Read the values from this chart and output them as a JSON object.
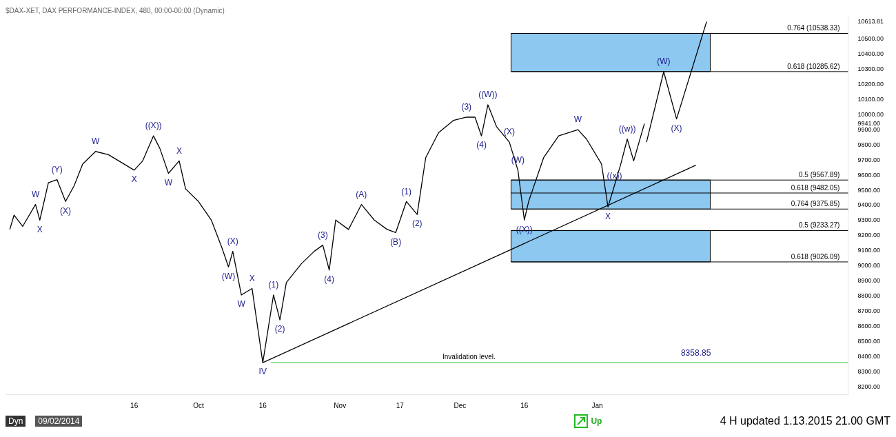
{
  "chart_data": {
    "type": "line",
    "title": "$DAX-XET, DAX PERFORMANCE-INDEX, 480, 00:00-00:00 (Dynamic)",
    "x": [
      "2014-08-18",
      "2014-08-19",
      "2014-08-21",
      "2014-08-24",
      "2014-08-25",
      "2014-08-27",
      "2014-08-29",
      "2014-08-31",
      "2014-09-02",
      "2014-09-04",
      "2014-09-07",
      "2014-09-10",
      "2014-09-16",
      "2014-09-18",
      "2014-09-20T12:00",
      "2014-09-22",
      "2014-09-24",
      "2014-09-26T12:00",
      "2014-09-28",
      "2014-10-01",
      "2014-10-04",
      "2014-10-06T12:00",
      "2014-10-08",
      "2014-10-09",
      "2014-10-11",
      "2014-10-13T12:00",
      "2014-10-16",
      "2014-10-18T12:00",
      "2014-10-20",
      "2014-10-21T12:00",
      "2014-10-25",
      "2014-10-28",
      "2014-10-30",
      "2014-10-31T12:00",
      "2014-11-02",
      "2014-11-05",
      "2014-11-08",
      "2014-11-11",
      "2014-11-14",
      "2014-11-16",
      "2014-11-18T12:00",
      "2014-11-21",
      "2014-11-23",
      "2014-11-26",
      "2014-11-29T12:00",
      "2014-12-02T12:00",
      "2014-12-04T12:00",
      "2014-12-06",
      "2014-12-07T12:00",
      "2014-12-09T12:00",
      "2014-12-12T12:00",
      "2014-12-14T12:00",
      "2014-12-16",
      "2014-12-17",
      "2014-12-18",
      "2014-12-20T12:00",
      "2014-12-24",
      "2014-12-28T12:00",
      "2014-12-30T12:00",
      "2015-01-03",
      "2015-01-04T12:00",
      "2015-01-06",
      "2015-01-07T12:00",
      "2015-01-09",
      "2015-01-10T12:00",
      "2015-01-13"
    ],
    "series": [
      {
        "color": "#000000",
        "values": [
          9241,
          9336,
          9261,
          9406,
          9303,
          9550,
          9571,
          9426,
          9530,
          9674,
          9757,
          9736,
          9633,
          9695,
          9860,
          9777,
          9612,
          9695,
          9509,
          9426,
          9303,
          9117,
          8993,
          9096,
          8807,
          8850,
          8359,
          8807,
          8642,
          8890,
          9014,
          9096,
          9137,
          8972,
          9303,
          9241,
          9406,
          9303,
          9241,
          9220,
          9426,
          9340,
          9716,
          9881,
          9963,
          9984,
          9984,
          9860,
          10066,
          9922,
          9819,
          9633,
          9303,
          9426,
          9509,
          9716,
          9860,
          9901,
          9839,
          9674,
          9390,
          9530,
          9674,
          9839,
          9695,
          9941
        ]
      },
      {
        "type": "line",
        "color": "#000000",
        "x": [
          "2015-01-13T12:00",
          "2015-01-17T12:00",
          "2015-01-20T12:00",
          "2015-01-27T12:00"
        ],
        "values": [
          9819,
          10285,
          9972,
          10616
        ]
      },
      {
        "type": "line",
        "color": "#000000",
        "x": [
          "2014-10-16",
          "2015-01-25"
        ],
        "values": [
          8359,
          9666
        ]
      }
    ],
    "xlim": [
      "2014-08-17",
      "2015-03-01T12:00"
    ],
    "xticks": [
      {
        "value": "2014-09-16",
        "label": "16"
      },
      {
        "value": "2014-10-01",
        "label": "Oct"
      },
      {
        "value": "2014-10-16",
        "label": "16"
      },
      {
        "value": "2014-11-03",
        "label": "Nov"
      },
      {
        "value": "2014-11-17",
        "label": "17"
      },
      {
        "value": "2014-12-01",
        "label": "Dec"
      },
      {
        "value": "2014-12-16",
        "label": "16"
      },
      {
        "value": "2015-01-02",
        "label": "Jan"
      }
    ],
    "ylim": [
      8150,
      10650
    ],
    "yticks": [
      {
        "value": 8200,
        "label": "8200.00"
      },
      {
        "value": 8300,
        "label": "8300.00"
      },
      {
        "value": 8400,
        "label": "8400.00"
      },
      {
        "value": 8500,
        "label": "8500.00"
      },
      {
        "value": 8600,
        "label": "8600.00"
      },
      {
        "value": 8700,
        "label": "8700.00"
      },
      {
        "value": 8800,
        "label": "8800.00"
      },
      {
        "value": 8900,
        "label": "8900.00"
      },
      {
        "value": 9000,
        "label": "9000.00"
      },
      {
        "value": 9100,
        "label": "9100.00"
      },
      {
        "value": 9200,
        "label": "9200.00"
      },
      {
        "value": 9300,
        "label": "9300.00"
      },
      {
        "value": 9400,
        "label": "9400.00"
      },
      {
        "value": 9500,
        "label": "9500.00"
      },
      {
        "value": 9600,
        "label": "9600.00"
      },
      {
        "value": 9700,
        "label": "9700.00"
      },
      {
        "value": 9800,
        "label": "9800.00"
      },
      {
        "value": 9900,
        "label": "9900.00"
      },
      {
        "value": 9941,
        "label": "9941.00"
      },
      {
        "value": 10000,
        "label": "10000.00"
      },
      {
        "value": 10100,
        "label": "10100.00"
      },
      {
        "value": 10200,
        "label": "10200.00"
      },
      {
        "value": 10300,
        "label": "10300.00"
      },
      {
        "value": 10400,
        "label": "10400.00"
      },
      {
        "value": 10500,
        "label": "10500.00"
      },
      {
        "value": 10613.81,
        "label": "10613.81"
      }
    ],
    "grid": false,
    "legend": false,
    "marker": "none",
    "ref_lines": [
      {
        "axis": "y",
        "value": 10538.33,
        "label": "0.764 (10538.33)",
        "color": "#000000"
      },
      {
        "axis": "y",
        "value": 10285.62,
        "label": "0.618 (10285.62)",
        "color": "#000000"
      },
      {
        "axis": "y",
        "value": 9567.89,
        "label": "0.5 (9567.89)",
        "color": "#000000"
      },
      {
        "axis": "y",
        "value": 9482.05,
        "label": "0.618 (9482.05)",
        "color": "#000000"
      },
      {
        "axis": "y",
        "value": 9375.85,
        "label": "0.764 (9375.85)",
        "color": "#000000"
      },
      {
        "axis": "y",
        "value": 9233.27,
        "label": "0.5 (9233.27)",
        "color": "#000000"
      },
      {
        "axis": "y",
        "value": 9026.09,
        "label": "0.618 (9026.09)",
        "color": "#000000"
      },
      {
        "axis": "y",
        "value": 8358.85,
        "label": "Invalidation level.",
        "color": "#22bb22"
      }
    ],
    "bands": [
      {
        "axis": "y",
        "from": 10285.62,
        "to": 10538.33,
        "color": "#8cc8f0"
      },
      {
        "axis": "y",
        "from": 9375.85,
        "to": 9567.89,
        "color": "#8cc8f0"
      },
      {
        "axis": "y",
        "from": 9026.09,
        "to": 9233.27,
        "color": "#8cc8f0"
      }
    ],
    "annotations": [
      {
        "text": "((X))",
        "x": "2014-09-20T12:00",
        "y": 9860
      },
      {
        "text": "W",
        "x": "2014-09-07",
        "y": 9757
      },
      {
        "text": "(Y)",
        "x": "2014-08-29",
        "y": 9571
      },
      {
        "text": "W",
        "x": "2014-08-24",
        "y": 9406
      },
      {
        "text": "X",
        "x": "2014-08-25",
        "y": 9303
      },
      {
        "text": "(X)",
        "x": "2014-08-31",
        "y": 9426
      },
      {
        "text": "X",
        "x": "2014-09-16",
        "y": 9633
      },
      {
        "text": "X",
        "x": "2014-09-26T12:00",
        "y": 9695
      },
      {
        "text": "W",
        "x": "2014-09-24",
        "y": 9612
      },
      {
        "text": "(X)",
        "x": "2014-10-09",
        "y": 9096
      },
      {
        "text": "(W)",
        "x": "2014-10-08",
        "y": 8993
      },
      {
        "text": "X",
        "x": "2014-10-13T12:00",
        "y": 8850
      },
      {
        "text": "W",
        "x": "2014-10-11",
        "y": 8807
      },
      {
        "text": "(1)",
        "x": "2014-10-18T12:00",
        "y": 8807
      },
      {
        "text": "(2)",
        "x": "2014-10-20",
        "y": 8642
      },
      {
        "text": "(3)",
        "x": "2014-10-30",
        "y": 9137
      },
      {
        "text": "(4)",
        "x": "2014-10-31T12:00",
        "y": 8972
      },
      {
        "text": "IV",
        "x": "2014-10-16",
        "y": 8359
      },
      {
        "text": "(A)",
        "x": "2014-11-08",
        "y": 9406
      },
      {
        "text": "(B)",
        "x": "2014-11-16",
        "y": 9220
      },
      {
        "text": "(1)",
        "x": "2014-11-18T12:00",
        "y": 9426
      },
      {
        "text": "(2)",
        "x": "2014-11-21",
        "y": 9340
      },
      {
        "text": "(3)",
        "x": "2014-12-02T12:00",
        "y": 9984
      },
      {
        "text": "((W))",
        "x": "2014-12-07T12:00",
        "y": 10066
      },
      {
        "text": "(4)",
        "x": "2014-12-06",
        "y": 9860
      },
      {
        "text": "(X)",
        "x": "2014-12-12T12:00",
        "y": 9819
      },
      {
        "text": "(W)",
        "x": "2014-12-14T12:00",
        "y": 9633
      },
      {
        "text": "((X))",
        "x": "2014-12-16",
        "y": 9303
      },
      {
        "text": "W",
        "x": "2014-12-28T12:00",
        "y": 9901
      },
      {
        "text": "((w))",
        "x": "2015-01-09",
        "y": 9839
      },
      {
        "text": "((x))",
        "x": "2015-01-06",
        "y": 9530
      },
      {
        "text": "X",
        "x": "2015-01-04T12:00",
        "y": 9390
      },
      {
        "text": "(W)",
        "x": "2015-01-17T12:00",
        "y": 10285
      },
      {
        "text": "(X)",
        "x": "2015-01-20T12:00",
        "y": 9972
      },
      {
        "text": "8358.85",
        "x": "2015-01-25",
        "y": 8358.85
      },
      "Dyn",
      "09/02/2014",
      "Up",
      "4 H  updated  1.13.2015  21.00 GMT"
    ]
  }
}
